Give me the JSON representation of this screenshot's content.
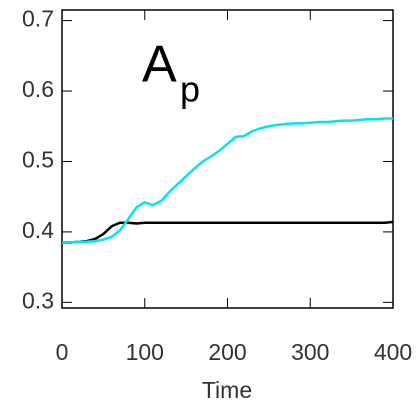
{
  "chart_data": {
    "type": "line",
    "x_label": "Time",
    "annotation": {
      "text": "A",
      "subscript": "p"
    },
    "x": [
      0,
      10,
      20,
      30,
      40,
      50,
      60,
      70,
      80,
      90,
      100,
      110,
      120,
      130,
      140,
      150,
      160,
      170,
      180,
      190,
      200,
      210,
      220,
      230,
      240,
      250,
      260,
      270,
      280,
      290,
      300,
      310,
      320,
      330,
      340,
      350,
      360,
      370,
      380,
      390,
      400
    ],
    "series": [
      {
        "color": "#000000",
        "values": [
          0.385,
          0.385,
          0.386,
          0.387,
          0.39,
          0.397,
          0.408,
          0.413,
          0.413,
          0.412,
          0.413,
          0.413,
          0.413,
          0.413,
          0.413,
          0.413,
          0.413,
          0.413,
          0.413,
          0.413,
          0.413,
          0.413,
          0.413,
          0.413,
          0.413,
          0.413,
          0.413,
          0.413,
          0.413,
          0.413,
          0.413,
          0.413,
          0.413,
          0.413,
          0.413,
          0.413,
          0.413,
          0.413,
          0.413,
          0.413,
          0.414
        ]
      },
      {
        "color": "#00e5ee",
        "values": [
          0.385,
          0.385,
          0.386,
          0.386,
          0.387,
          0.389,
          0.393,
          0.402,
          0.418,
          0.435,
          0.442,
          0.438,
          0.444,
          0.457,
          0.468,
          0.479,
          0.49,
          0.5,
          0.507,
          0.515,
          0.525,
          0.535,
          0.536,
          0.543,
          0.547,
          0.55,
          0.552,
          0.553,
          0.554,
          0.554,
          0.555,
          0.556,
          0.556,
          0.557,
          0.558,
          0.558,
          0.559,
          0.56,
          0.56,
          0.561,
          0.561
        ]
      }
    ],
    "xlim": [
      0,
      400
    ],
    "xticks": [
      0,
      100,
      200,
      300,
      400
    ],
    "ylim": [
      0.292,
      0.715
    ],
    "yticks": [
      0.3,
      0.4,
      0.5,
      0.6,
      0.7
    ]
  }
}
